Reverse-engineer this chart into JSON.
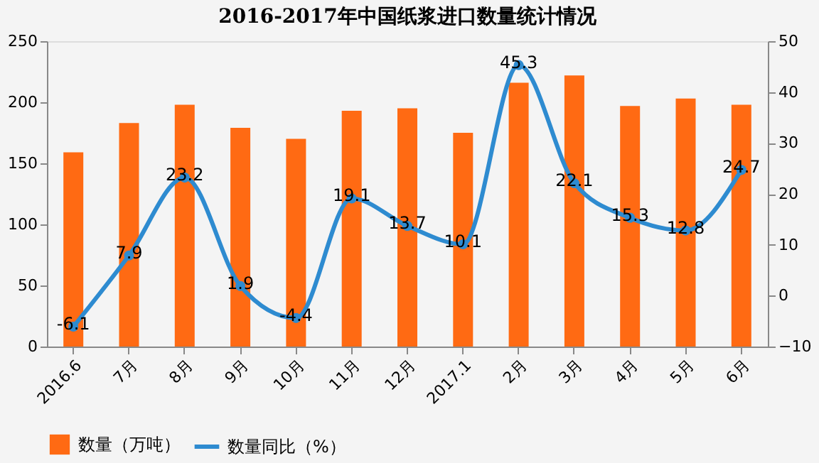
{
  "chart_data": {
    "type": "bar",
    "title": "2016-2017年中国纸浆进口数量统计情况",
    "categories": [
      "2016.6",
      "7月",
      "8月",
      "9月",
      "10月",
      "11月",
      "12月",
      "2017.1",
      "2月",
      "3月",
      "4月",
      "5月",
      "6月"
    ],
    "series": [
      {
        "name": "数量（万吨）",
        "color": "#ff6a13",
        "values": [
          159,
          183,
          198,
          179,
          170,
          193,
          195,
          175,
          216,
          222,
          197,
          203,
          198
        ]
      },
      {
        "name": "数量同比（%）",
        "type": "line",
        "axis": "y2",
        "color": "#2e8bd0",
        "marker": "circle",
        "values": [
          -6.1,
          7.9,
          23.2,
          1.9,
          -4.4,
          19.1,
          13.7,
          10.1,
          45.3,
          22.1,
          15.3,
          12.8,
          24.7
        ],
        "data_labels": true
      }
    ],
    "ylim": [
      0,
      250
    ],
    "yticks": [
      0,
      50,
      100,
      150,
      200,
      250
    ],
    "y2lim": [
      -10,
      50
    ],
    "y2ticks": [
      -10,
      0,
      10,
      20,
      30,
      40,
      50
    ],
    "grid": false,
    "legend": "bottom"
  }
}
